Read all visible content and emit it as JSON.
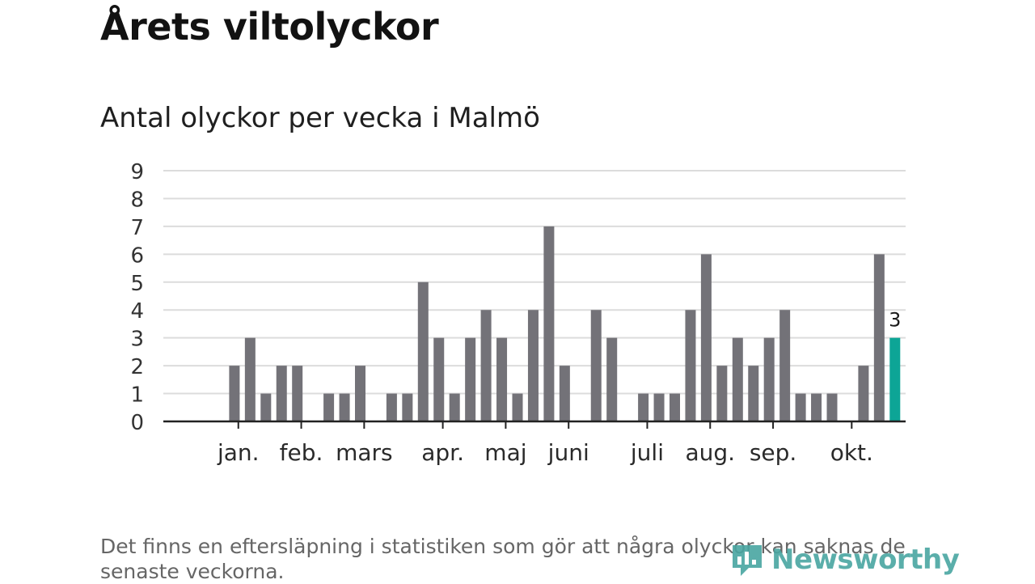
{
  "header": {
    "title": "Årets viltolyckor",
    "subtitle": "Antal olyckor per vecka i Malmö"
  },
  "footnote": "Det finns en eftersläpning i statistiken som gör att några olyckor kan saknas de senaste veckorna.",
  "brand": {
    "name": "Newsworthy",
    "color": "#49a6a1",
    "icon": "bar-chart-logo-icon"
  },
  "colors": {
    "bar": "#737278",
    "highlight": "#0da596",
    "grid": "#dcdcdc",
    "axis": "#222222"
  },
  "chart_data": {
    "type": "bar",
    "title": "Antal olyckor per vecka i Malmö",
    "xlabel": "",
    "ylabel": "",
    "ylim": [
      0,
      9
    ],
    "yticks": [
      0,
      1,
      2,
      3,
      4,
      5,
      6,
      7,
      8,
      9
    ],
    "grid": true,
    "values": [
      0,
      0,
      2,
      3,
      1,
      2,
      2,
      0,
      1,
      1,
      2,
      0,
      1,
      1,
      5,
      3,
      1,
      3,
      4,
      3,
      1,
      4,
      7,
      2,
      0,
      4,
      3,
      0,
      1,
      1,
      1,
      4,
      6,
      2,
      3,
      2,
      3,
      4,
      1,
      1,
      1,
      0,
      2,
      6,
      3
    ],
    "month_ticks": [
      {
        "label": "jan.",
        "index": 2.25
      },
      {
        "label": "feb.",
        "index": 6.25
      },
      {
        "label": "mars",
        "index": 10.25
      },
      {
        "label": "apr.",
        "index": 15.25
      },
      {
        "label": "maj",
        "index": 19.25
      },
      {
        "label": "juni",
        "index": 23.25
      },
      {
        "label": "juli",
        "index": 28.25
      },
      {
        "label": "aug.",
        "index": 32.25
      },
      {
        "label": "sep.",
        "index": 36.25
      },
      {
        "label": "okt.",
        "index": 41.25
      }
    ],
    "highlight_index": 44,
    "highlight_label": "3"
  }
}
